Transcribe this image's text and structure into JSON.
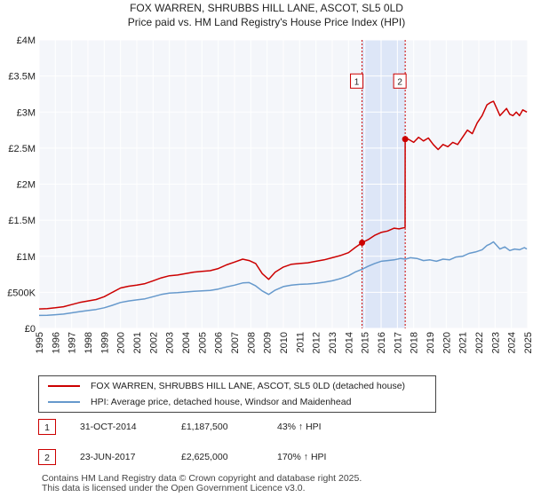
{
  "header": {
    "title": "FOX WARREN, SHRUBBS HILL LANE, ASCOT, SL5 0LD",
    "subtitle": "Price paid vs. HM Land Registry's House Price Index (HPI)"
  },
  "chart_data": {
    "type": "line",
    "title": "FOX WARREN, SHRUBBS HILL LANE, ASCOT, SL5 0LD",
    "subtitle": "Price paid vs. HM Land Registry's House Price Index (HPI)",
    "xlabel": "",
    "ylabel": "",
    "xlim": [
      1995,
      2025
    ],
    "ylim": [
      0,
      4000000
    ],
    "grid": true,
    "x_ticks": [
      1995,
      1996,
      1997,
      1998,
      1999,
      2000,
      2001,
      2002,
      2003,
      2004,
      2005,
      2006,
      2007,
      2008,
      2009,
      2010,
      2011,
      2012,
      2013,
      2014,
      2015,
      2016,
      2017,
      2018,
      2019,
      2020,
      2021,
      2022,
      2023,
      2024,
      2025
    ],
    "x_tick_labels": [
      "1995",
      "1996",
      "1997",
      "1998",
      "1999",
      "2000",
      "2001",
      "2002",
      "2003",
      "2004",
      "2005",
      "2006",
      "2007",
      "2008",
      "2009",
      "2010",
      "2011",
      "2012",
      "2013",
      "2014",
      "2015",
      "2016",
      "2017",
      "2018",
      "2019",
      "2020",
      "2021",
      "2022",
      "2023",
      "2024",
      "2025"
    ],
    "y_ticks": [
      0,
      500000,
      1000000,
      1500000,
      2000000,
      2500000,
      3000000,
      3500000,
      4000000
    ],
    "y_tick_labels": [
      "£0",
      "£500K",
      "£1M",
      "£1.5M",
      "£2M",
      "£2.5M",
      "£3M",
      "£3.5M",
      "£4M"
    ],
    "shaded_region": [
      2014.83,
      2017.48
    ],
    "series": [
      {
        "name": "FOX WARREN, SHRUBBS HILL LANE, ASCOT, SL5 0LD (detached house)",
        "color": "#cc0000",
        "x": [
          1995.0,
          1995.5,
          1996.0,
          1996.5,
          1997.0,
          1997.5,
          1998.0,
          1998.5,
          1999.0,
          1999.5,
          2000.0,
          2000.5,
          2001.0,
          2001.5,
          2002.0,
          2002.5,
          2003.0,
          2003.5,
          2004.0,
          2004.5,
          2005.0,
          2005.5,
          2006.0,
          2006.5,
          2007.0,
          2007.5,
          2007.9,
          2008.3,
          2008.7,
          2009.1,
          2009.5,
          2010.0,
          2010.5,
          2011.0,
          2011.5,
          2012.0,
          2012.5,
          2013.0,
          2013.5,
          2014.0,
          2014.4,
          2014.83,
          2015.2,
          2015.6,
          2016.0,
          2016.4,
          2016.8,
          2017.1,
          2017.47,
          2017.48,
          2017.7,
          2018.0,
          2018.3,
          2018.6,
          2018.9,
          2019.2,
          2019.5,
          2019.8,
          2020.1,
          2020.4,
          2020.7,
          2021.0,
          2021.3,
          2021.6,
          2021.9,
          2022.2,
          2022.5,
          2022.7,
          2022.9,
          2023.1,
          2023.3,
          2023.5,
          2023.7,
          2023.9,
          2024.1,
          2024.3,
          2024.5,
          2024.7,
          2024.95
        ],
        "values": [
          270000,
          275000,
          285000,
          300000,
          330000,
          360000,
          380000,
          400000,
          440000,
          500000,
          560000,
          585000,
          600000,
          620000,
          660000,
          700000,
          730000,
          740000,
          760000,
          780000,
          790000,
          800000,
          830000,
          880000,
          920000,
          960000,
          940000,
          900000,
          760000,
          680000,
          780000,
          850000,
          890000,
          900000,
          910000,
          930000,
          950000,
          980000,
          1010000,
          1050000,
          1120000,
          1187500,
          1230000,
          1290000,
          1330000,
          1350000,
          1390000,
          1380000,
          1400000,
          2625000,
          2620000,
          2580000,
          2650000,
          2600000,
          2640000,
          2550000,
          2480000,
          2550000,
          2520000,
          2580000,
          2550000,
          2650000,
          2750000,
          2700000,
          2850000,
          2950000,
          3100000,
          3130000,
          3150000,
          3050000,
          2950000,
          3000000,
          3050000,
          2970000,
          2950000,
          3000000,
          2950000,
          3030000,
          3000000
        ]
      },
      {
        "name": "HPI: Average price, detached house, Windsor and Maidenhead",
        "color": "#6699cc",
        "x": [
          1995.0,
          1995.5,
          1996.0,
          1996.5,
          1997.0,
          1997.5,
          1998.0,
          1998.5,
          1999.0,
          1999.5,
          2000.0,
          2000.5,
          2001.0,
          2001.5,
          2002.0,
          2002.5,
          2003.0,
          2003.5,
          2004.0,
          2004.5,
          2005.0,
          2005.5,
          2006.0,
          2006.5,
          2007.0,
          2007.5,
          2007.9,
          2008.3,
          2008.7,
          2009.1,
          2009.5,
          2010.0,
          2010.5,
          2011.0,
          2011.5,
          2012.0,
          2012.5,
          2013.0,
          2013.5,
          2014.0,
          2014.4,
          2014.83,
          2015.2,
          2015.6,
          2016.0,
          2016.4,
          2016.8,
          2017.2,
          2017.5,
          2017.8,
          2018.2,
          2018.6,
          2019.0,
          2019.4,
          2019.8,
          2020.2,
          2020.6,
          2021.0,
          2021.4,
          2021.8,
          2022.2,
          2022.5,
          2022.7,
          2022.9,
          2023.1,
          2023.3,
          2023.6,
          2023.9,
          2024.2,
          2024.5,
          2024.8,
          2024.95
        ],
        "values": [
          180000,
          182000,
          190000,
          198000,
          215000,
          232000,
          248000,
          262000,
          285000,
          320000,
          360000,
          380000,
          395000,
          410000,
          440000,
          470000,
          490000,
          495000,
          505000,
          515000,
          520000,
          525000,
          545000,
          575000,
          600000,
          630000,
          635000,
          590000,
          520000,
          470000,
          530000,
          580000,
          600000,
          610000,
          615000,
          625000,
          640000,
          660000,
          690000,
          730000,
          780000,
          820000,
          860000,
          900000,
          930000,
          940000,
          950000,
          970000,
          960000,
          980000,
          970000,
          940000,
          950000,
          930000,
          960000,
          950000,
          990000,
          1000000,
          1040000,
          1060000,
          1090000,
          1150000,
          1170000,
          1200000,
          1150000,
          1100000,
          1130000,
          1080000,
          1100000,
          1090000,
          1120000,
          1100000
        ]
      }
    ],
    "annotations": [
      {
        "label": "1",
        "x": 2014.83,
        "value": 1187500
      },
      {
        "label": "2",
        "x": 2017.48,
        "value": 2625000
      }
    ]
  },
  "legend": {
    "items": [
      {
        "label": "FOX WARREN, SHRUBBS HILL LANE, ASCOT, SL5 0LD (detached house)",
        "color": "#cc0000"
      },
      {
        "label": "HPI: Average price, detached house, Windsor and Maidenhead",
        "color": "#6699cc"
      }
    ]
  },
  "transactions": [
    {
      "num": "1",
      "date": "31-OCT-2014",
      "price": "£1,187,500",
      "hpi": "43% ↑ HPI"
    },
    {
      "num": "2",
      "date": "23-JUN-2017",
      "price": "£2,625,000",
      "hpi": "170% ↑ HPI"
    }
  ],
  "footer": {
    "line1": "Contains HM Land Registry data © Crown copyright and database right 2025.",
    "line2": "This data is licensed under the Open Government Licence v3.0."
  }
}
